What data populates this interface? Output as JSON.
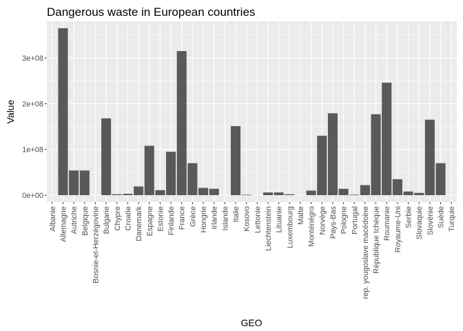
{
  "chart_data": {
    "type": "bar",
    "title": "Dangerous waste in European countries",
    "xlabel": "GEO",
    "ylabel": "Value",
    "ylim": [
      -15000000,
      380000000
    ],
    "yticks": [
      0,
      100000000,
      200000000,
      300000000
    ],
    "ytick_labels": [
      "0e+00",
      "1e+08",
      "2e+08",
      "3e+08"
    ],
    "grid": true,
    "bar_color": "#595959",
    "panel_color": "#ebebeb",
    "grid_color": "#ffffff",
    "categories": [
      "Albanie",
      "Allemagne",
      "Autriche",
      "Belgique",
      "Bosnie-et-Herzégovine",
      "Bulgarie",
      "Chypre",
      "Croatie",
      "Danemark",
      "Espagne",
      "Estonie",
      "Finlande",
      "France",
      "Grèce",
      "Hongrie",
      "Irlande",
      "Islande",
      "Italie",
      "Kosovo",
      "Lettonie",
      "Liechtenstein",
      "Lituanie",
      "Luxembourg",
      "Malte",
      "Monténégro",
      "Norvège",
      "Pays-Bas",
      "Pologne",
      "Portugal",
      "rep. yougoslave macédoine",
      "République tchèque",
      "Roumanie",
      "Royaume-Uni",
      "Serbie",
      "Slovaquie",
      "Slovénie",
      "Suède",
      "Turquie"
    ],
    "values": [
      0,
      365000000,
      54000000,
      54000000,
      0,
      168000000,
      2000000,
      3000000,
      19000000,
      108000000,
      11000000,
      95000000,
      315000000,
      70000000,
      16000000,
      14000000,
      0,
      151000000,
      1000000,
      0,
      6000000,
      6000000,
      2000000,
      0,
      10000000,
      130000000,
      179000000,
      14000000,
      1000000,
      22000000,
      177000000,
      246000000,
      35000000,
      8000000,
      5000000,
      165000000,
      70000000,
      0
    ]
  }
}
